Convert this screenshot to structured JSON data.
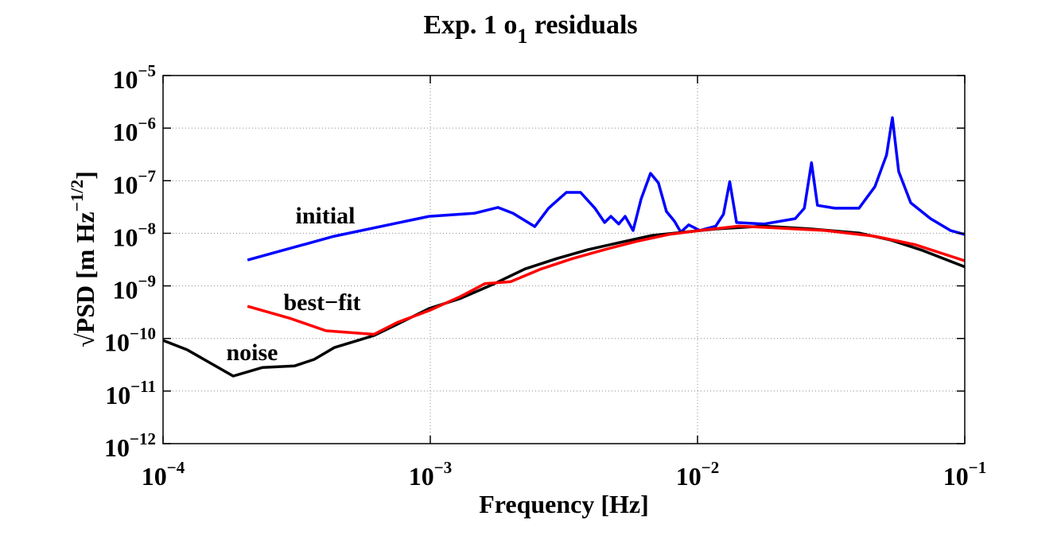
{
  "chart_data": {
    "type": "line",
    "title": [
      "Exp. 1 o",
      "1",
      " residuals"
    ],
    "xlabel": "Frequency  [Hz]",
    "ylabel": [
      "√PSD  [m Hz",
      "−1/2",
      "]"
    ],
    "log_x": true,
    "log_y": true,
    "grid": true,
    "xlim": [
      0.0001,
      0.1
    ],
    "ylim": [
      1e-12,
      1e-05
    ],
    "xticks": [
      {
        "value": 0.0001,
        "label": [
          "10",
          "−4"
        ]
      },
      {
        "value": 0.001,
        "label": [
          "10",
          "−3"
        ]
      },
      {
        "value": 0.01,
        "label": [
          "10",
          "−2"
        ]
      },
      {
        "value": 0.1,
        "label": [
          "10",
          "−1"
        ]
      }
    ],
    "yticks": [
      {
        "value": 1e-12,
        "label": [
          "10",
          "−12"
        ]
      },
      {
        "value": 1e-11,
        "label": [
          "10",
          "−11"
        ]
      },
      {
        "value": 1e-10,
        "label": [
          "10",
          "−10"
        ]
      },
      {
        "value": 1e-09,
        "label": [
          "10",
          "−9"
        ]
      },
      {
        "value": 1e-08,
        "label": [
          "10",
          "−8"
        ]
      },
      {
        "value": 1e-07,
        "label": [
          "10",
          "−7"
        ]
      },
      {
        "value": 1e-06,
        "label": [
          "10",
          "−6"
        ]
      },
      {
        "value": 1e-05,
        "label": [
          "10",
          "−5"
        ]
      }
    ],
    "annotations": [
      "initial",
      "best−fit",
      "noise"
    ],
    "series": [
      {
        "color": "#0000ff",
        "x": [
          0.000207,
          0.000437,
          0.00099,
          0.00146,
          0.00179,
          0.00204,
          0.00246,
          0.00277,
          0.00323,
          0.00365,
          0.00413,
          0.00449,
          0.00474,
          0.00507,
          0.00536,
          0.00574,
          0.00615,
          0.00667,
          0.00714,
          0.00765,
          0.0082,
          0.00866,
          0.00927,
          0.0102,
          0.0117,
          0.0125,
          0.0132,
          0.014,
          0.0177,
          0.0232,
          0.0251,
          0.0267,
          0.0281,
          0.0327,
          0.0402,
          0.0461,
          0.051,
          0.0536,
          0.0566,
          0.0628,
          0.0745,
          0.0884,
          0.1
        ],
        "values": [
          3.1e-09,
          8.8e-09,
          2.1e-08,
          2.4e-08,
          3.1e-08,
          2.4e-08,
          1.34e-08,
          3e-08,
          6e-08,
          6e-08,
          3e-08,
          1.6e-08,
          2.1e-08,
          1.5e-08,
          2.1e-08,
          1.13e-08,
          4.5e-08,
          1.38e-07,
          9.1e-08,
          2.6e-08,
          1.7e-08,
          1.05e-08,
          1.45e-08,
          1.13e-08,
          1.37e-08,
          2.3e-08,
          9.6e-08,
          1.6e-08,
          1.5e-08,
          1.9e-08,
          3e-08,
          2.2e-07,
          3.4e-08,
          3e-08,
          3e-08,
          7.7e-08,
          3.1e-07,
          1.58e-06,
          1.5e-07,
          3.8e-08,
          1.9e-08,
          1.13e-08,
          9.5e-09
        ]
      },
      {
        "color": "#000000",
        "x": [
          0.0001,
          0.000123,
          0.000183,
          0.000235,
          0.00031,
          0.000368,
          0.000437,
          0.000537,
          0.000615,
          0.00075,
          0.00099,
          0.0013,
          0.00171,
          0.00226,
          0.00297,
          0.0039,
          0.00513,
          0.00676,
          0.0089,
          0.0117,
          0.0177,
          0.0267,
          0.0402,
          0.053,
          0.0697,
          0.1
        ],
        "values": [
          9.2e-11,
          6.1e-11,
          1.93e-11,
          2.8e-11,
          3e-11,
          4e-11,
          6.7e-11,
          9.2e-11,
          1.14e-10,
          1.85e-10,
          3.7e-10,
          5.8e-10,
          1.06e-09,
          2.1e-09,
          3.3e-09,
          4.9e-09,
          6.7e-09,
          9.1e-09,
          1.05e-08,
          1.21e-08,
          1.37e-08,
          1.21e-08,
          1.01e-08,
          7.4e-09,
          4.7e-09,
          2.3e-09
        ]
      },
      {
        "color": "#ff0000",
        "x": [
          0.000207,
          0.0003,
          0.000407,
          0.000615,
          0.00075,
          0.00099,
          0.0013,
          0.0016,
          0.002,
          0.0026,
          0.0034,
          0.00449,
          0.0059,
          0.0078,
          0.0102,
          0.0143,
          0.02,
          0.03,
          0.046,
          0.065,
          0.1
        ],
        "values": [
          4.1e-10,
          2.4e-10,
          1.4e-10,
          1.2e-10,
          2e-10,
          3.4e-10,
          6.3e-10,
          1.1e-09,
          1.2e-09,
          2.1e-09,
          3.3e-09,
          4.9e-09,
          7e-09,
          9.5e-09,
          1.13e-08,
          1.37e-08,
          1.26e-08,
          1.13e-08,
          8.8e-09,
          6.1e-09,
          3e-09
        ]
      }
    ]
  }
}
